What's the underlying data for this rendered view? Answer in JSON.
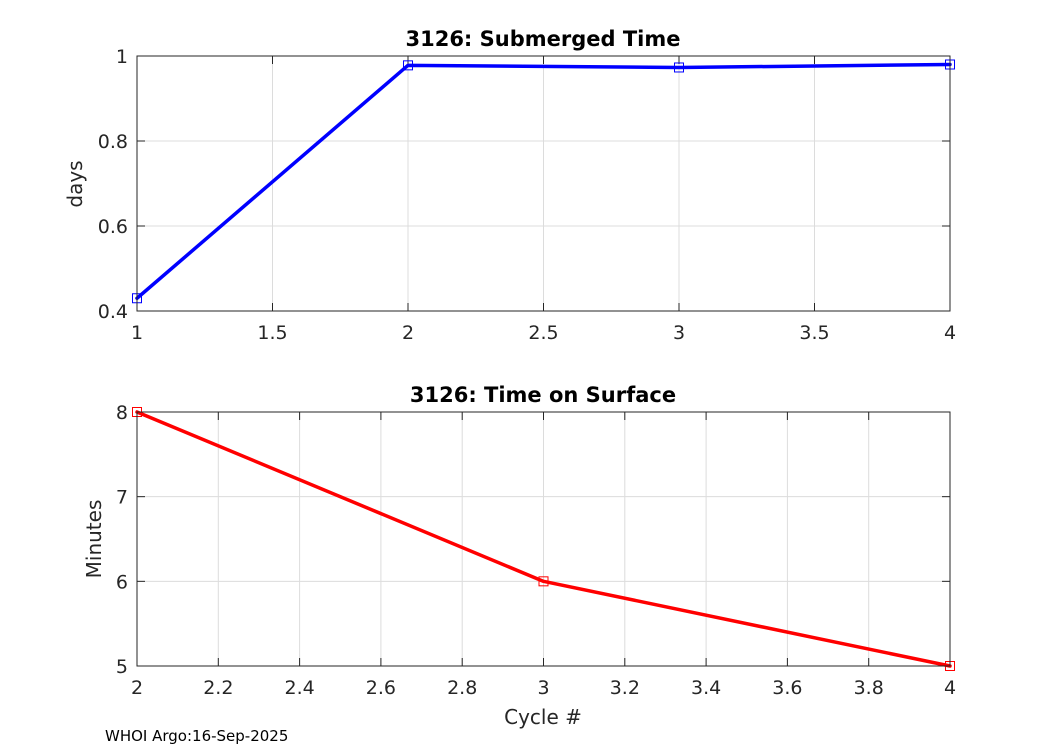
{
  "chart_data": [
    {
      "type": "line",
      "title": "3126: Submerged Time",
      "xlabel": "",
      "ylabel": "days",
      "xlim": [
        1,
        4
      ],
      "ylim": [
        0.4,
        1
      ],
      "grid": true,
      "x_ticks": [
        1,
        1.5,
        2,
        2.5,
        3,
        3.5,
        4
      ],
      "x_tick_labels": [
        "1",
        "1.5",
        "2",
        "2.5",
        "3",
        "3.5",
        "4"
      ],
      "y_ticks": [
        0.4,
        0.6,
        0.8,
        1
      ],
      "y_tick_labels": [
        "0.4",
        "0.6",
        "0.8",
        "1"
      ],
      "series": [
        {
          "name": "Submerged Time",
          "color": "#0000ff",
          "marker": "square",
          "x": [
            1,
            2,
            3,
            4
          ],
          "values": [
            0.43,
            0.978,
            0.973,
            0.98
          ]
        }
      ]
    },
    {
      "type": "line",
      "title": "3126: Time on Surface",
      "xlabel": "Cycle #",
      "ylabel": "Minutes",
      "xlim": [
        2,
        4
      ],
      "ylim": [
        5,
        8
      ],
      "grid": true,
      "x_ticks": [
        2,
        2.2,
        2.4,
        2.6,
        2.8,
        3,
        3.2,
        3.4,
        3.6,
        3.8,
        4
      ],
      "x_tick_labels": [
        "2",
        "2.2",
        "2.4",
        "2.6",
        "2.8",
        "3",
        "3.2",
        "3.4",
        "3.6",
        "3.8",
        "4"
      ],
      "y_ticks": [
        5,
        6,
        7,
        8
      ],
      "y_tick_labels": [
        "5",
        "6",
        "7",
        "8"
      ],
      "series": [
        {
          "name": "Time on Surface",
          "color": "#ff0000",
          "marker": "square",
          "x": [
            2,
            3,
            4
          ],
          "values": [
            8,
            6,
            5
          ]
        }
      ]
    }
  ],
  "footer": {
    "text": "WHOI Argo:16-Sep-2025"
  }
}
